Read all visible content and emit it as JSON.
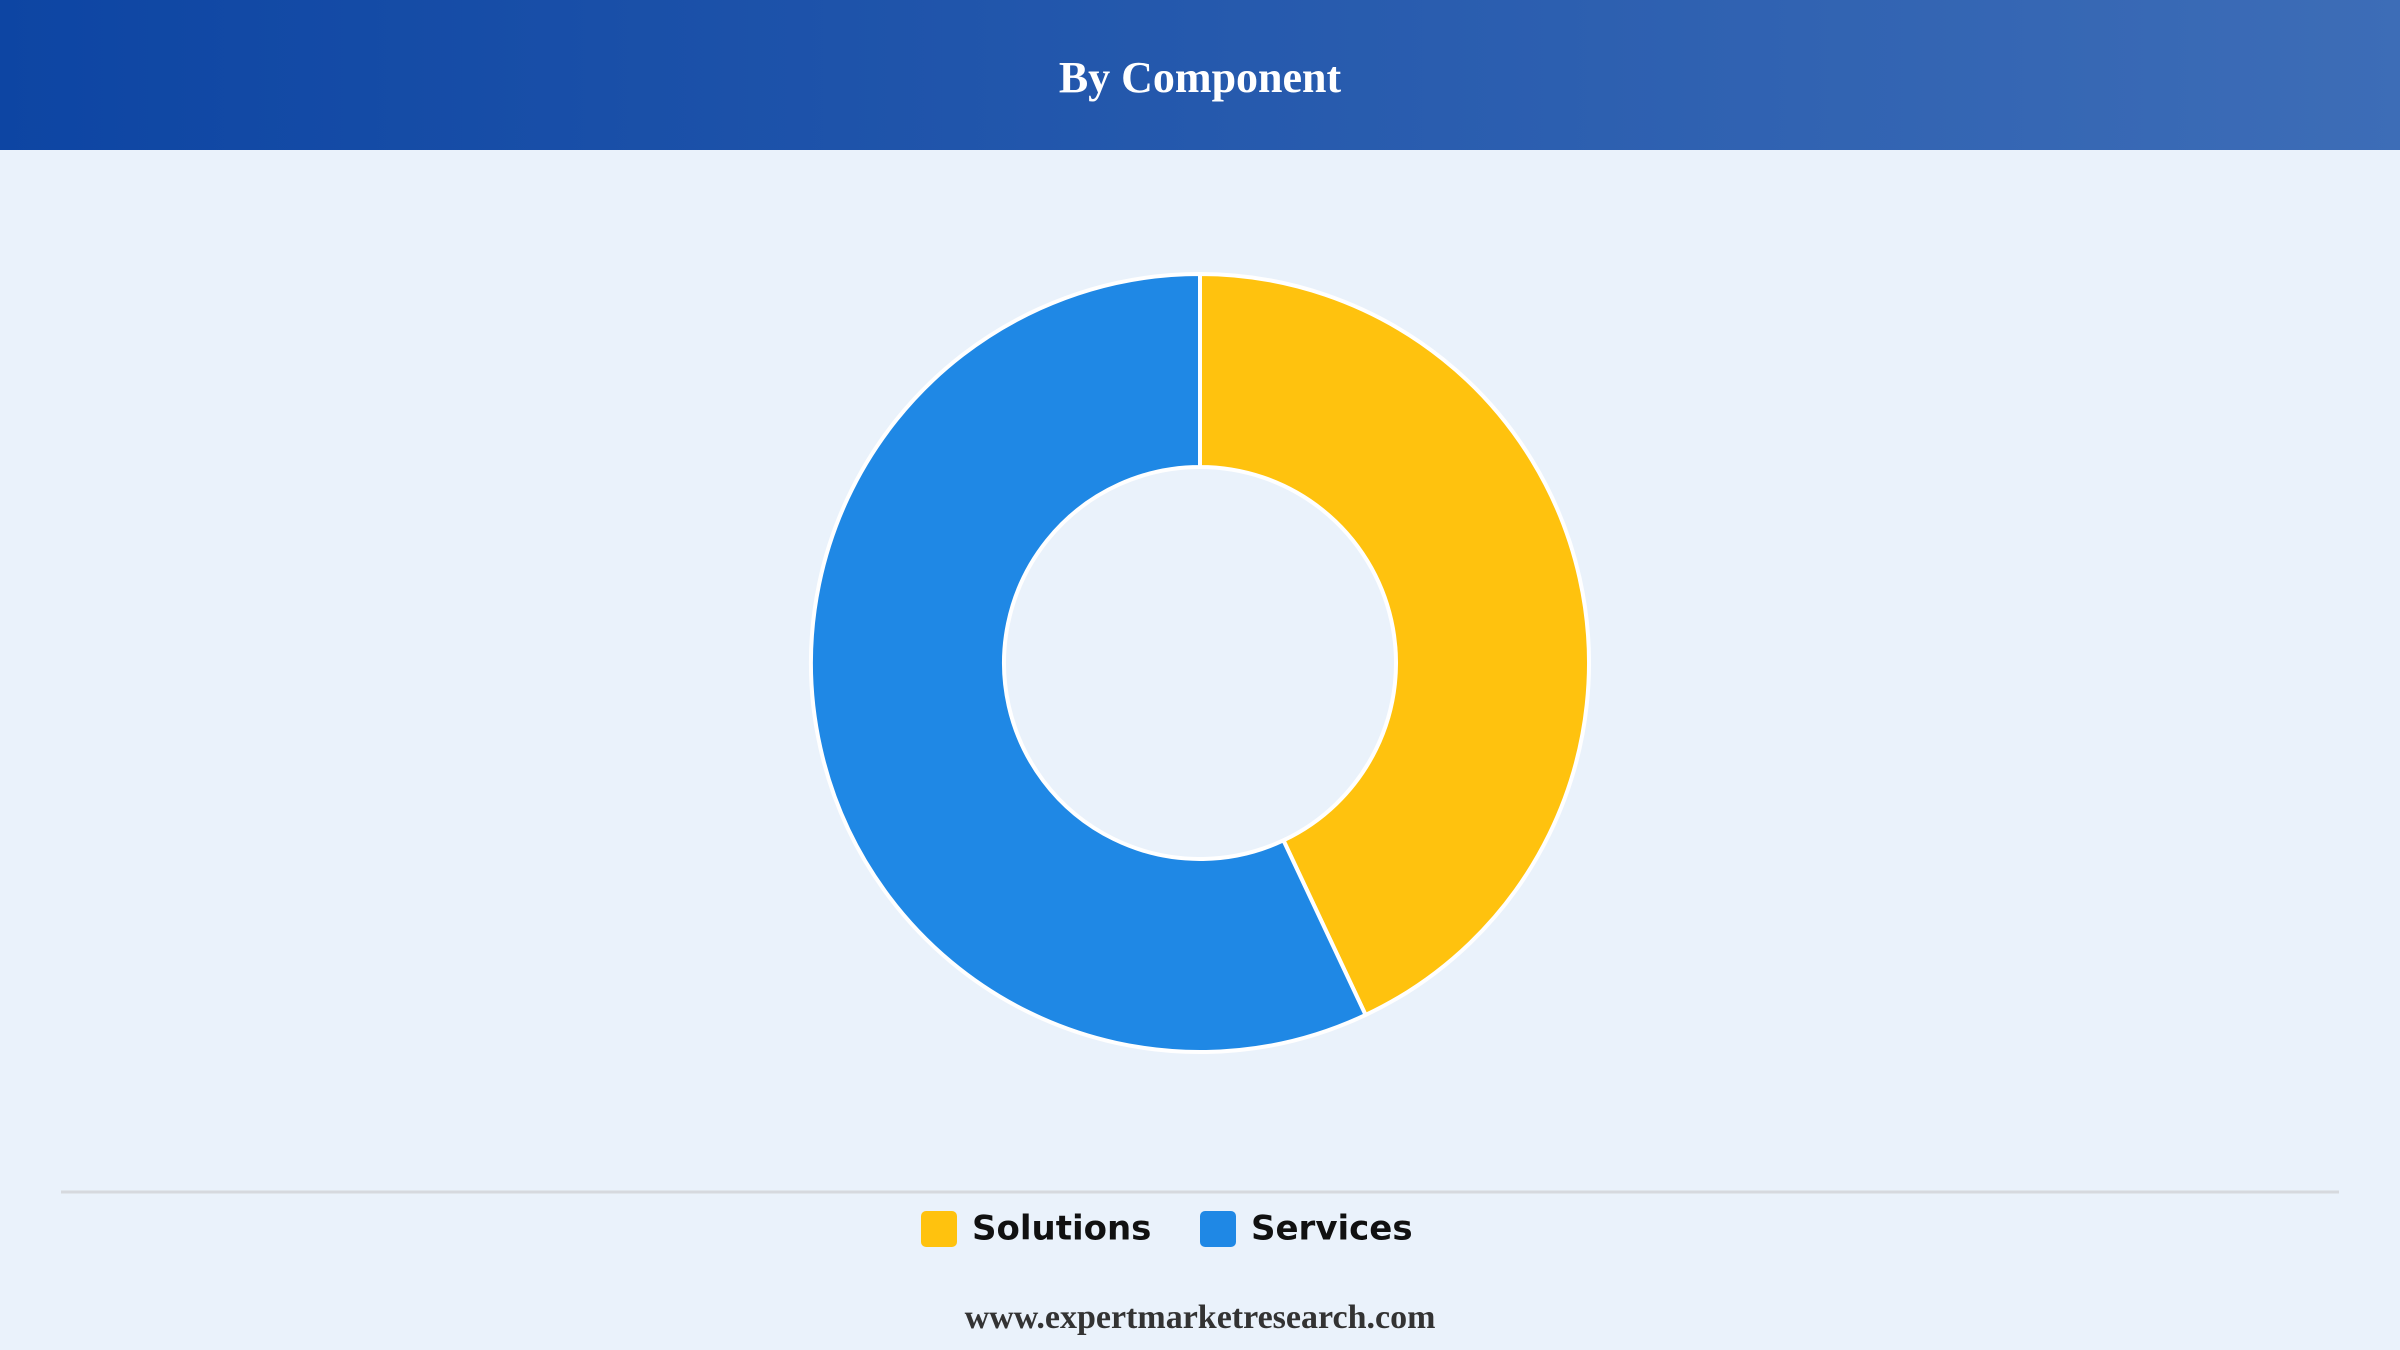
{
  "chart_data": {
    "type": "donut",
    "title": "By Component",
    "categories": [
      "Solutions",
      "Services"
    ],
    "values": [
      43,
      57
    ],
    "colors": [
      "#ffc20e",
      "#1f88e5"
    ],
    "source": "www.expertmarketresearch.com"
  }
}
